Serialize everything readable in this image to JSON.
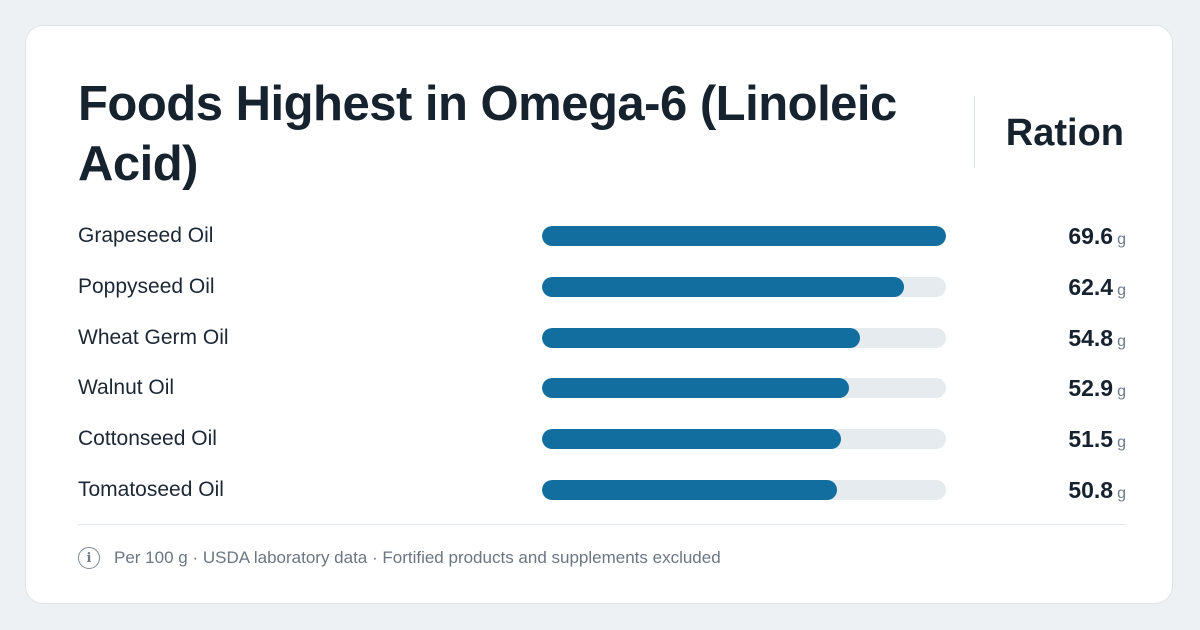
{
  "card": {
    "side_label": "Ration",
    "footnote": "Per 100 g · USDA laboratory data · Fortified products and supplements excluded",
    "info_icon": "info-icon"
  },
  "colors": {
    "background": "#edf1f4",
    "card": "#ffffff",
    "bar_fill": "#116e9f",
    "bar_track": "#e6ebf0",
    "text": "#17222f"
  },
  "chart_data": {
    "type": "bar",
    "orientation": "horizontal",
    "title": "Foods Highest in Omega-6 (Linoleic Acid)",
    "unit": "g",
    "xlim": [
      0,
      69.6
    ],
    "categories": [
      "Grapeseed Oil",
      "Poppyseed Oil",
      "Wheat Germ Oil",
      "Walnut Oil",
      "Cottonseed Oil",
      "Tomatoseed Oil"
    ],
    "values": [
      69.6,
      62.4,
      54.8,
      52.9,
      51.5,
      50.8
    ],
    "value_labels": [
      "69.6",
      "62.4",
      "54.8",
      "52.9",
      "51.5",
      "50.8"
    ],
    "grid": false,
    "legend": "none"
  }
}
